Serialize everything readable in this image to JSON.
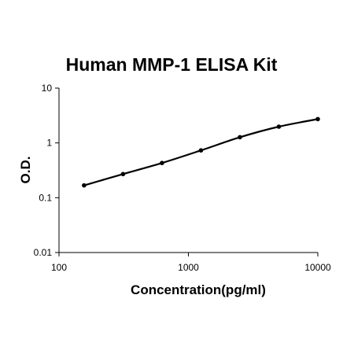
{
  "chart_data": {
    "type": "line",
    "title": "Human MMP-1 ELISA Kit",
    "xlabel": "Concentration(pg/ml)",
    "ylabel": "O.D.",
    "x_scale": "log",
    "y_scale": "log",
    "xlim": [
      100,
      10000
    ],
    "ylim": [
      0.01,
      10
    ],
    "x_ticks": [
      "100",
      "1000",
      "10000"
    ],
    "y_ticks": [
      "0.01",
      "0.1",
      "1",
      "10"
    ],
    "grid": false,
    "legend": "none",
    "series": [
      {
        "x": [
          156.25,
          312.5,
          625,
          1250,
          2500,
          5000,
          10000
        ],
        "y": [
          0.168,
          0.27,
          0.43,
          0.73,
          1.27,
          1.98,
          2.72
        ]
      }
    ],
    "colors": {
      "line": "#000000",
      "marker": "#000000",
      "axis": "#000000"
    }
  }
}
